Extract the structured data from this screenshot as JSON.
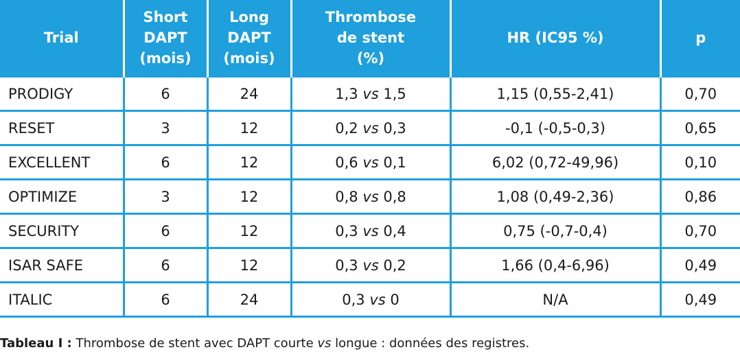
{
  "table": {
    "headers": [
      [
        "Trial"
      ],
      [
        "Short",
        "DAPT",
        "(mois)"
      ],
      [
        "Long",
        "DAPT",
        "(mois)"
      ],
      [
        "Thrombose",
        "de stent",
        "(%)"
      ],
      [
        "HR (IC95 %)"
      ],
      [
        "p"
      ]
    ],
    "vs_word": "vs",
    "rows": [
      {
        "trial": "PRODIGY",
        "short": "6",
        "long": "24",
        "thr_a": "1,3",
        "thr_b": "1,5",
        "hr": "1,15 (0,55-2,41)",
        "p": "0,70"
      },
      {
        "trial": "RESET",
        "short": "3",
        "long": "12",
        "thr_a": "0,2",
        "thr_b": "0,3",
        "hr": "-0,1 (-0,5-0,3)",
        "p": "0,65"
      },
      {
        "trial": "EXCELLENT",
        "short": "6",
        "long": "12",
        "thr_a": "0,6",
        "thr_b": "0,1",
        "hr": "6,02 (0,72-49,96)",
        "p": "0,10"
      },
      {
        "trial": "OPTIMIZE",
        "short": "3",
        "long": "12",
        "thr_a": "0,8",
        "thr_b": "0,8",
        "hr": "1,08 (0,49-2,36)",
        "p": "0,86"
      },
      {
        "trial": "SECURITY",
        "short": "6",
        "long": "12",
        "thr_a": "0,3",
        "thr_b": "0,4",
        "hr": "0,75 (-0,7-0,4)",
        "p": "0,70"
      },
      {
        "trial": "ISAR SAFE",
        "short": "6",
        "long": "12",
        "thr_a": "0,3",
        "thr_b": "0,2",
        "hr": "1,66 (0,4-6,96)",
        "p": "0,49"
      },
      {
        "trial": "ITALIC",
        "short": "6",
        "long": "24",
        "thr_a": "0,3",
        "thr_b": "0",
        "hr": "N/A",
        "p": "0,49"
      }
    ]
  },
  "caption": {
    "label": "Tableau I :",
    "text_before": "Thrombose de stent avec DAPT courte",
    "italic": "vs",
    "text_after": "longue : données des registres."
  },
  "colors": {
    "accent": "#1f9fdc",
    "header_text": "#ffffff",
    "body_text": "#1a1a1a"
  }
}
